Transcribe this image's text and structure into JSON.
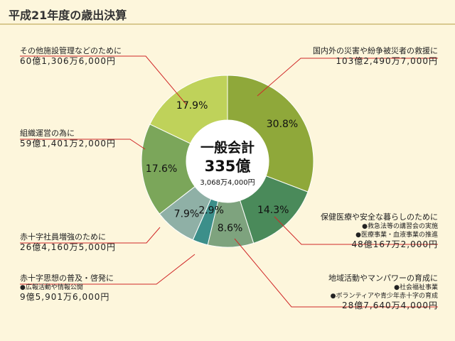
{
  "page": {
    "title": "平成21年度の歳出決算"
  },
  "center": {
    "line1": "一般会計",
    "line2": "335億",
    "line3": "3,068万4,000円"
  },
  "chart_data": {
    "type": "pie",
    "title": "平成21年度の歳出決算",
    "total": "一般会計 335億3,068万4,000円",
    "slices": [
      {
        "name": "国内外の災害や紛争被災者の救援に",
        "amount": "103億2,490万7,000円",
        "percent": 30.8,
        "label": "30.8%",
        "color": "#8fa83a"
      },
      {
        "name": "保健医療や安全な暮らしのために",
        "amount": "48億167万2,000円",
        "percent": 14.3,
        "label": "14.3%",
        "color": "#4a8a5a",
        "details": [
          "●救急法等の講習会の実施",
          "●医療事業・血液事業の推進"
        ]
      },
      {
        "name": "地域活動やマンパワーの育成に",
        "amount": "28億7,640万4,000円",
        "percent": 8.6,
        "label": "8.6%",
        "color": "#7ea37e",
        "details": [
          "●社会福祉事業",
          "●ボランティアや青少年赤十字の育成"
        ]
      },
      {
        "name": "赤十字思想の普及・啓発に",
        "amount": "9億5,901万6,000円",
        "percent": 2.9,
        "label": "2.9%",
        "color": "#3c8f8a",
        "details": [
          "●広報活動や情報公開"
        ]
      },
      {
        "name": "赤十字社員増強のために",
        "amount": "26億4,160万5,000円",
        "percent": 7.9,
        "label": "7.9%",
        "color": "#8fb0a6"
      },
      {
        "name": "組織運営の為に",
        "amount": "59億1,401万2,000円",
        "percent": 17.6,
        "label": "17.6%",
        "color": "#7ba65a"
      },
      {
        "name": "その他施設管理などのために",
        "amount": "60億1,306万6,000円",
        "percent": 17.9,
        "label": "17.9%",
        "color": "#bfd25a"
      }
    ]
  }
}
